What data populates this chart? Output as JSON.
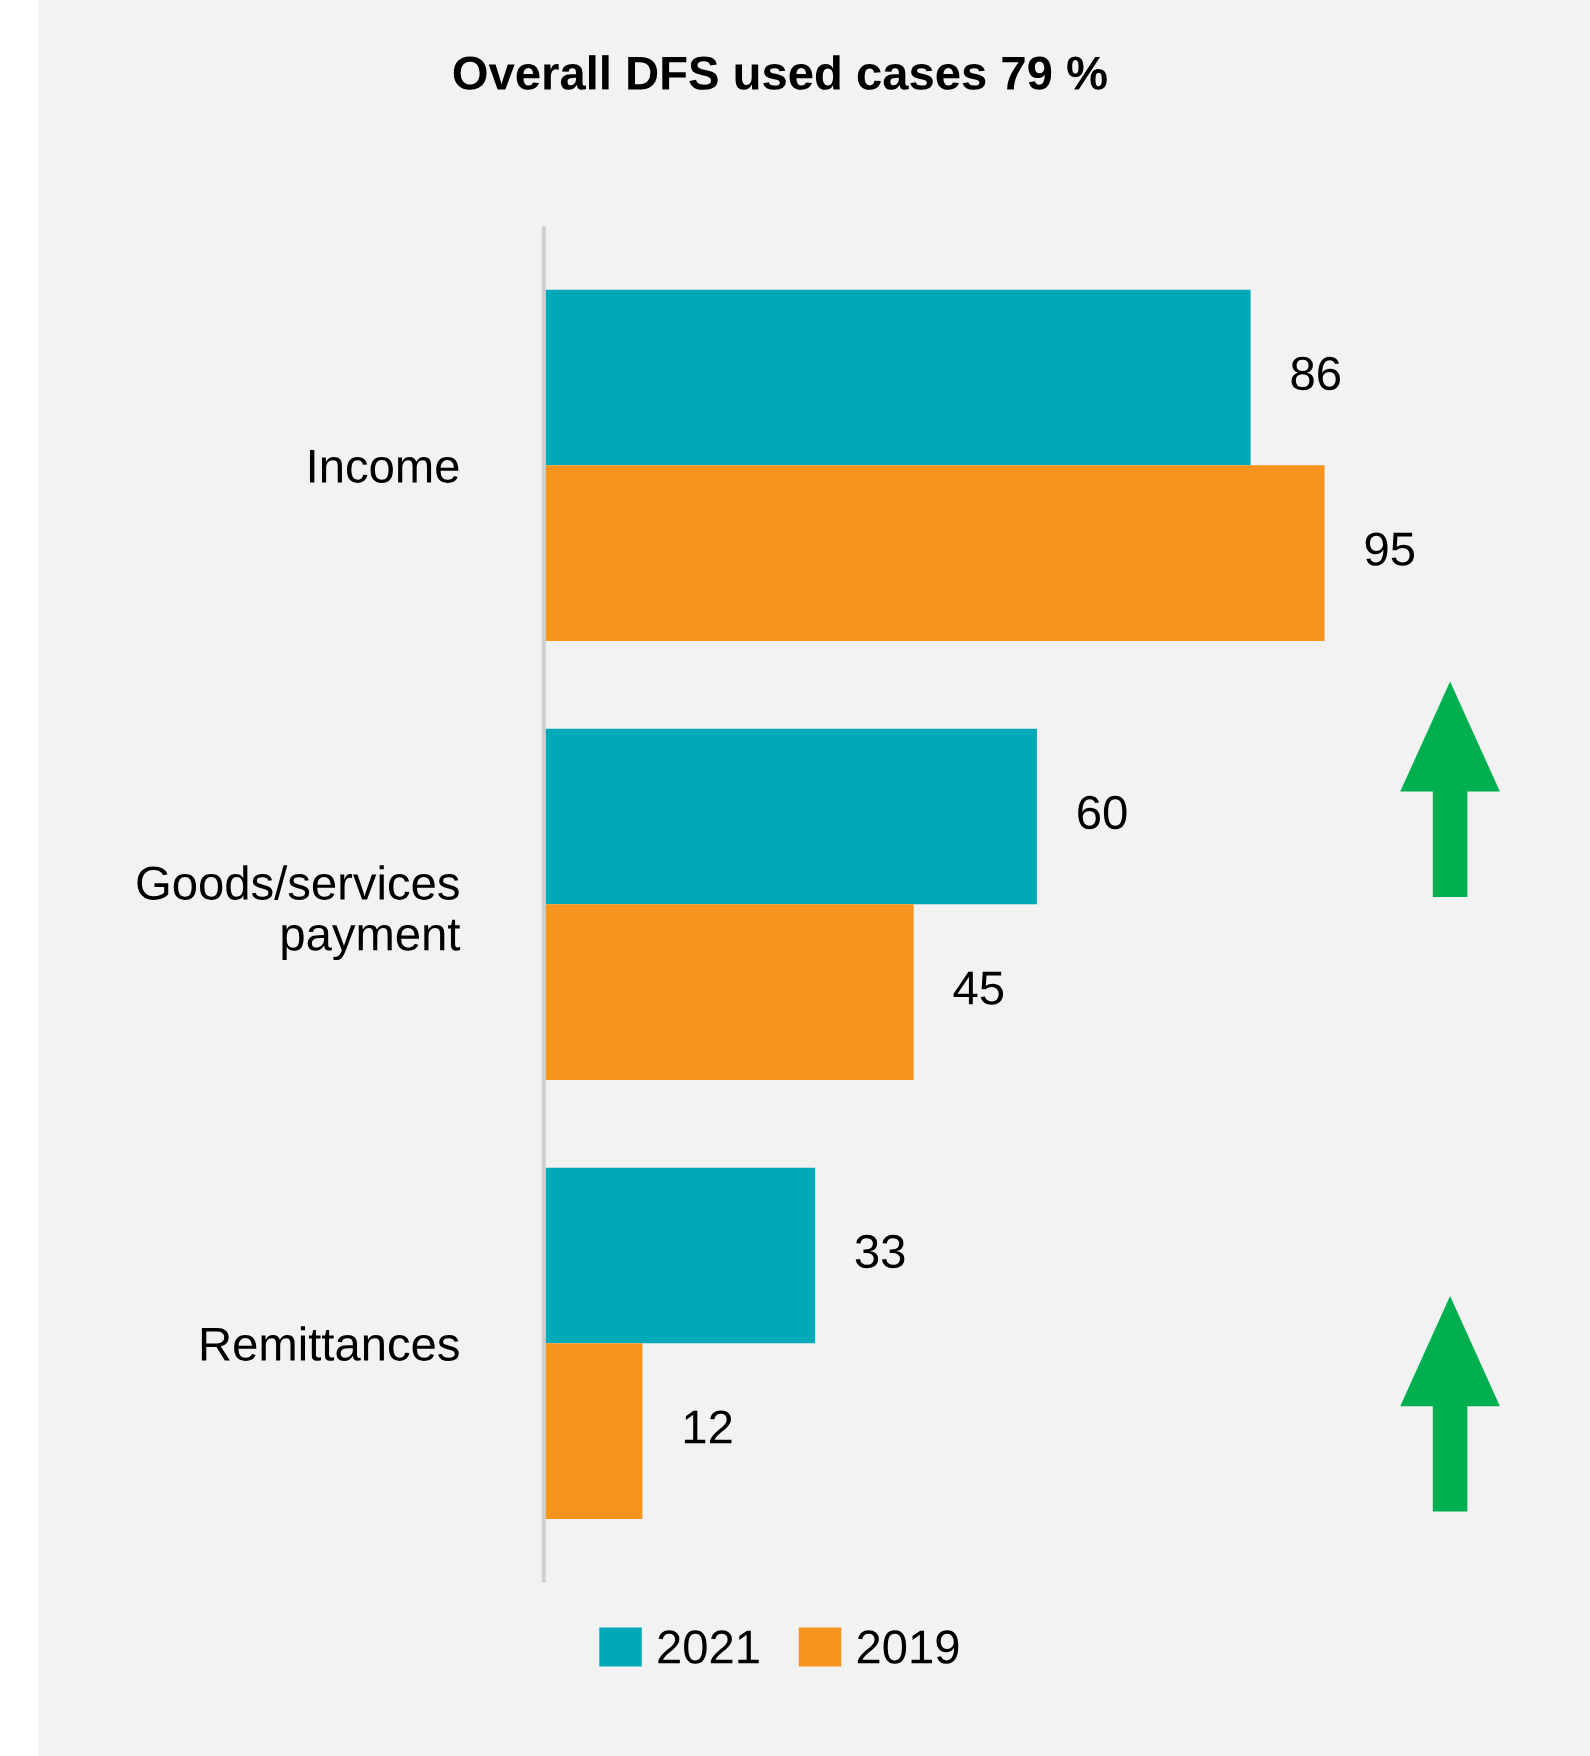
{
  "chart_data": {
    "type": "bar",
    "orientation": "horizontal",
    "title": "Overall DFS used cases 79 %",
    "categories": [
      "Income",
      "Goods/services payment",
      "Remittances"
    ],
    "series": [
      {
        "name": "2021",
        "color": "#00a9b8",
        "values": [
          86,
          60,
          33
        ]
      },
      {
        "name": "2019",
        "color": "#f7941d",
        "values": [
          95,
          45,
          12
        ]
      }
    ],
    "data_labels": true,
    "legend": "bottom",
    "grid": false
  }
}
